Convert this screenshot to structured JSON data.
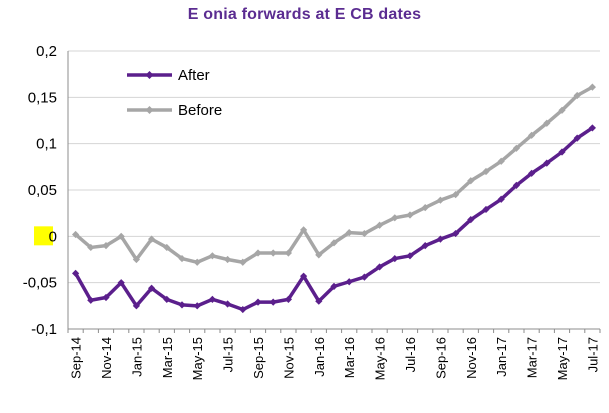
{
  "chart_data": {
    "type": "line",
    "title": "E onia forwards at E CB dates",
    "xlabel": "",
    "ylabel": "",
    "ylim": [
      -0.1,
      0.2
    ],
    "yticks": [
      -0.1,
      -0.05,
      0,
      0.05,
      0.1,
      0.15,
      0.2
    ],
    "ytick_labels": [
      "-0,1",
      "-0,05",
      "0",
      "0,05",
      "0,1",
      "0,15",
      "0,2"
    ],
    "highlighted_ytick": "0",
    "x_tick_labels": [
      "Sep-14",
      "Nov-14",
      "Jan-15",
      "Mar-15",
      "May-15",
      "Jul-15",
      "Sep-15",
      "Nov-15",
      "Jan-16",
      "Mar-16",
      "May-16",
      "Jul-16",
      "Sep-16",
      "Nov-16",
      "Jan-17",
      "Mar-17",
      "May-17",
      "Jul-17"
    ],
    "grid": true,
    "legend_position": "top-left",
    "colors": {
      "after": "#5b1f8c",
      "before": "#a6a6a6",
      "title": "#5b2c91",
      "highlight": "#ffff00"
    },
    "series": [
      {
        "name": "After",
        "values": [
          -0.04,
          -0.069,
          -0.066,
          -0.05,
          -0.075,
          -0.056,
          -0.068,
          -0.074,
          -0.075,
          -0.068,
          -0.073,
          -0.079,
          -0.071,
          -0.071,
          -0.068,
          -0.043,
          -0.07,
          -0.054,
          -0.049,
          -0.044,
          -0.033,
          -0.024,
          -0.021,
          -0.01,
          -0.003,
          0.003,
          0.018,
          0.029,
          0.04,
          0.055,
          0.068,
          0.079,
          0.091,
          0.106,
          0.117
        ]
      },
      {
        "name": "Before",
        "values": [
          0.002,
          -0.012,
          -0.01,
          0.0,
          -0.025,
          -0.003,
          -0.012,
          -0.024,
          -0.028,
          -0.021,
          -0.025,
          -0.028,
          -0.018,
          -0.018,
          -0.018,
          0.007,
          -0.02,
          -0.007,
          0.004,
          0.003,
          0.012,
          0.02,
          0.023,
          0.031,
          0.039,
          0.045,
          0.06,
          0.07,
          0.081,
          0.095,
          0.109,
          0.122,
          0.136,
          0.152,
          0.161
        ]
      }
    ]
  }
}
